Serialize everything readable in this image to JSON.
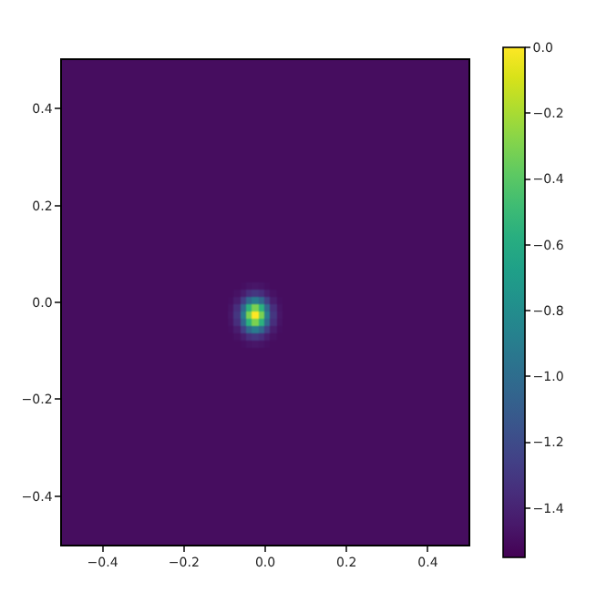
{
  "chart_data": {
    "type": "heatmap",
    "x": [
      -0.45,
      -0.35,
      -0.25,
      -0.15,
      -0.1,
      -0.085,
      -0.07,
      -0.055,
      -0.04,
      -0.025,
      -0.01,
      0.005,
      0.02,
      0.035,
      0.05,
      0.15,
      0.25,
      0.35,
      0.45
    ],
    "y": [
      0.45,
      0.35,
      0.25,
      0.15,
      0.05,
      0.035,
      0.02,
      0.005,
      -0.01,
      -0.025,
      -0.04,
      -0.055,
      -0.07,
      -0.085,
      -0.1,
      -0.15,
      -0.25,
      -0.35,
      -0.45
    ],
    "cells": [
      [
        -1.5,
        -1.5,
        -1.5,
        -1.5,
        -1.5,
        -1.5,
        -1.5,
        -1.5,
        -1.5,
        -1.5,
        -1.5,
        -1.5,
        -1.5,
        -1.5,
        -1.5,
        -1.5,
        -1.5,
        -1.5,
        -1.5
      ],
      [
        -1.5,
        -1.5,
        -1.5,
        -1.5,
        -1.5,
        -1.5,
        -1.5,
        -1.5,
        -1.5,
        -1.5,
        -1.5,
        -1.5,
        -1.5,
        -1.5,
        -1.5,
        -1.5,
        -1.5,
        -1.5,
        -1.5
      ],
      [
        -1.5,
        -1.5,
        -1.5,
        -1.5,
        -1.5,
        -1.5,
        -1.5,
        -1.5,
        -1.5,
        -1.5,
        -1.5,
        -1.5,
        -1.5,
        -1.5,
        -1.5,
        -1.5,
        -1.5,
        -1.5,
        -1.5
      ],
      [
        -1.5,
        -1.5,
        -1.5,
        -1.5,
        -1.5,
        -1.5,
        -1.5,
        -1.5,
        -1.5,
        -1.5,
        -1.5,
        -1.5,
        -1.5,
        -1.5,
        -1.5,
        -1.5,
        -1.5,
        -1.5,
        -1.5
      ],
      [
        -1.5,
        -1.5,
        -1.5,
        -1.5,
        -1.5,
        -1.5,
        -1.5,
        -1.5,
        -1.5,
        -1.5,
        -1.5,
        -1.5,
        -1.5,
        -1.5,
        -1.5,
        -1.5,
        -1.5,
        -1.5,
        -1.5
      ],
      [
        -1.5,
        -1.5,
        -1.5,
        -1.5,
        -1.5,
        -1.5,
        -1.5,
        -1.49,
        -1.47,
        -1.46,
        -1.47,
        -1.49,
        -1.5,
        -1.5,
        -1.5,
        -1.5,
        -1.5,
        -1.5,
        -1.5
      ],
      [
        -1.5,
        -1.5,
        -1.5,
        -1.5,
        -1.5,
        -1.5,
        -1.48,
        -1.43,
        -1.35,
        -1.31,
        -1.35,
        -1.43,
        -1.48,
        -1.5,
        -1.5,
        -1.5,
        -1.5,
        -1.5,
        -1.5
      ],
      [
        -1.5,
        -1.5,
        -1.5,
        -1.5,
        -1.5,
        -1.49,
        -1.43,
        -1.27,
        -1.03,
        -0.91,
        -1.03,
        -1.27,
        -1.43,
        -1.49,
        -1.5,
        -1.5,
        -1.5,
        -1.5,
        -1.5
      ],
      [
        -1.5,
        -1.5,
        -1.5,
        -1.5,
        -1.5,
        -1.47,
        -1.35,
        -1.03,
        -0.56,
        -0.31,
        -0.56,
        -1.03,
        -1.35,
        -1.47,
        -1.5,
        -1.5,
        -1.5,
        -1.5,
        -1.5
      ],
      [
        -1.5,
        -1.5,
        -1.5,
        -1.5,
        -1.5,
        -1.46,
        -1.31,
        -0.91,
        -0.31,
        0,
        -0.31,
        -0.91,
        -1.31,
        -1.46,
        -1.5,
        -1.5,
        -1.5,
        -1.5,
        -1.5
      ],
      [
        -1.5,
        -1.5,
        -1.5,
        -1.5,
        -1.5,
        -1.47,
        -1.35,
        -1.03,
        -0.56,
        -0.31,
        -0.56,
        -1.03,
        -1.35,
        -1.47,
        -1.5,
        -1.5,
        -1.5,
        -1.5,
        -1.5
      ],
      [
        -1.5,
        -1.5,
        -1.5,
        -1.5,
        -1.5,
        -1.49,
        -1.43,
        -1.27,
        -1.03,
        -0.91,
        -1.03,
        -1.27,
        -1.43,
        -1.49,
        -1.5,
        -1.5,
        -1.5,
        -1.5,
        -1.5
      ],
      [
        -1.5,
        -1.5,
        -1.5,
        -1.5,
        -1.5,
        -1.5,
        -1.48,
        -1.43,
        -1.35,
        -1.31,
        -1.35,
        -1.43,
        -1.48,
        -1.5,
        -1.5,
        -1.5,
        -1.5,
        -1.5,
        -1.5
      ],
      [
        -1.5,
        -1.5,
        -1.5,
        -1.5,
        -1.5,
        -1.5,
        -1.5,
        -1.49,
        -1.47,
        -1.46,
        -1.47,
        -1.49,
        -1.5,
        -1.5,
        -1.5,
        -1.5,
        -1.5,
        -1.5,
        -1.5
      ],
      [
        -1.5,
        -1.5,
        -1.5,
        -1.5,
        -1.5,
        -1.5,
        -1.5,
        -1.5,
        -1.5,
        -1.5,
        -1.5,
        -1.5,
        -1.5,
        -1.5,
        -1.5,
        -1.5,
        -1.5,
        -1.5,
        -1.5
      ],
      [
        -1.5,
        -1.5,
        -1.5,
        -1.5,
        -1.5,
        -1.5,
        -1.5,
        -1.5,
        -1.5,
        -1.5,
        -1.5,
        -1.5,
        -1.5,
        -1.5,
        -1.5,
        -1.5,
        -1.5,
        -1.5,
        -1.5
      ],
      [
        -1.5,
        -1.5,
        -1.5,
        -1.5,
        -1.5,
        -1.5,
        -1.5,
        -1.5,
        -1.5,
        -1.5,
        -1.5,
        -1.5,
        -1.5,
        -1.5,
        -1.5,
        -1.5,
        -1.5,
        -1.5,
        -1.5
      ],
      [
        -1.5,
        -1.5,
        -1.5,
        -1.5,
        -1.5,
        -1.5,
        -1.5,
        -1.5,
        -1.5,
        -1.5,
        -1.5,
        -1.5,
        -1.5,
        -1.5,
        -1.5,
        -1.5,
        -1.5,
        -1.5,
        -1.5
      ],
      [
        -1.5,
        -1.5,
        -1.5,
        -1.5,
        -1.5,
        -1.5,
        -1.5,
        -1.5,
        -1.5,
        -1.5,
        -1.5,
        -1.5,
        -1.5,
        -1.5,
        -1.5,
        -1.5,
        -1.5,
        -1.5,
        -1.5
      ]
    ],
    "xlim": [
      -0.5,
      0.5
    ],
    "ylim": [
      -0.5,
      0.5
    ],
    "xticks": [
      -0.4,
      -0.2,
      {
        "value": 0,
        "label": "0.0"
      },
      0.2,
      0.4
    ],
    "yticks": [
      -0.4,
      -0.2,
      {
        "value": 0,
        "label": "0.0"
      },
      0.2,
      0.4
    ],
    "clim": [
      -1.55,
      0
    ],
    "cticks": [
      {
        "value": 0,
        "label": "0.0"
      },
      -0.2,
      -0.4,
      -0.6,
      -0.8,
      {
        "value": -1,
        "label": "−1.0"
      },
      -1.2,
      -1.4
    ]
  }
}
